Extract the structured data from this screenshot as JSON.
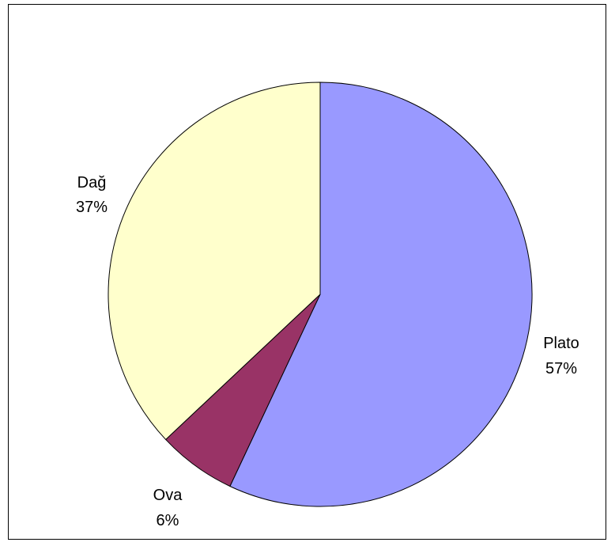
{
  "chart_data": {
    "type": "pie",
    "title": "",
    "slices": [
      {
        "label": "Plato",
        "value": 57,
        "value_label": "57%",
        "color": "#9999ff"
      },
      {
        "label": "Ova",
        "value": 6,
        "value_label": "6%",
        "color": "#993366"
      },
      {
        "label": "Dağ",
        "value": 37,
        "value_label": "37%",
        "color": "#ffffcc"
      }
    ],
    "start_angle_deg": 0,
    "direction": "clockwise",
    "legend": "none",
    "slice_border_color": "#000000"
  }
}
